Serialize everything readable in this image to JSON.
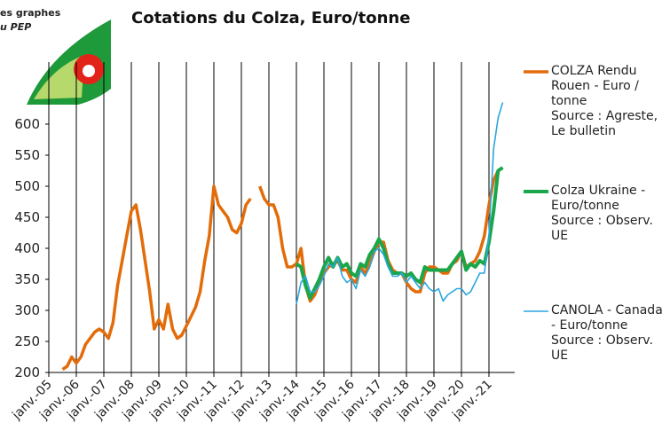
{
  "logo_text": [
    "es graphes",
    "u PEP"
  ],
  "chart_data": {
    "type": "line",
    "title": "Cotations du Colza, Euro/tonne",
    "legend": "right",
    "grid": true,
    "ylim": [
      200,
      700
    ],
    "yticks": [
      200,
      250,
      300,
      350,
      400,
      450,
      500,
      550,
      600
    ],
    "xticks": [
      {
        "value": "2005-01",
        "label": "janv.-05"
      },
      {
        "value": "2006-01",
        "label": "janv.-06"
      },
      {
        "value": "2007-01",
        "label": "janv.-07"
      },
      {
        "value": "2008-01",
        "label": "janv.-08"
      },
      {
        "value": "2009-01",
        "label": "janv.-09"
      },
      {
        "value": "2010-01",
        "label": "janv.-10"
      },
      {
        "value": "2011-01",
        "label": "janv.-11"
      },
      {
        "value": "2012-01",
        "label": "janv.-12"
      },
      {
        "value": "2013-01",
        "label": "janv.-13"
      },
      {
        "value": "2014-01",
        "label": "janv.-14"
      },
      {
        "value": "2015-01",
        "label": "janv.-15"
      },
      {
        "value": "2016-01",
        "label": "janv.-16"
      },
      {
        "value": "2017-01",
        "label": "janv.-17"
      },
      {
        "value": "2018-01",
        "label": "janv.-18"
      },
      {
        "value": "2019-01",
        "label": "janv.-19"
      },
      {
        "value": "2020-01",
        "label": "janv.-20"
      },
      {
        "value": "2021-01",
        "label": "janv.-21"
      }
    ],
    "x": [
      "2005-07",
      "2005-09",
      "2005-11",
      "2006-01",
      "2006-03",
      "2006-05",
      "2006-07",
      "2006-09",
      "2006-11",
      "2007-01",
      "2007-03",
      "2007-05",
      "2007-07",
      "2007-09",
      "2007-11",
      "2008-01",
      "2008-03",
      "2008-05",
      "2008-07",
      "2008-09",
      "2008-11",
      "2009-01",
      "2009-03",
      "2009-05",
      "2009-07",
      "2009-09",
      "2009-11",
      "2010-01",
      "2010-03",
      "2010-05",
      "2010-07",
      "2010-09",
      "2010-11",
      "2011-01",
      "2011-03",
      "2011-05",
      "2011-07",
      "2011-09",
      "2011-11",
      "2012-01",
      "2012-03",
      "2012-05",
      "2012-07",
      "2012-09",
      "2012-11",
      "2013-01",
      "2013-03",
      "2013-05",
      "2013-07",
      "2013-09",
      "2013-11",
      "2014-01",
      "2014-03",
      "2014-05",
      "2014-07",
      "2014-09",
      "2014-11",
      "2015-01",
      "2015-03",
      "2015-05",
      "2015-07",
      "2015-09",
      "2015-11",
      "2016-01",
      "2016-03",
      "2016-05",
      "2016-07",
      "2016-09",
      "2016-11",
      "2017-01",
      "2017-03",
      "2017-05",
      "2017-07",
      "2017-09",
      "2017-11",
      "2018-01",
      "2018-03",
      "2018-05",
      "2018-07",
      "2018-09",
      "2018-11",
      "2019-01",
      "2019-03",
      "2019-05",
      "2019-07",
      "2019-09",
      "2019-11",
      "2020-01",
      "2020-03",
      "2020-05",
      "2020-07",
      "2020-09",
      "2020-11",
      "2021-01",
      "2021-03",
      "2021-05",
      "2021-07"
    ],
    "series": [
      {
        "name": "COLZA Rendu Rouen - Euro / tonne\nSource : Agreste, Le bulletin",
        "color": "#e36c0a",
        "width": 3.5,
        "values": [
          205,
          210,
          225,
          215,
          225,
          245,
          255,
          265,
          270,
          265,
          255,
          280,
          340,
          380,
          420,
          460,
          470,
          430,
          380,
          330,
          270,
          285,
          270,
          310,
          270,
          255,
          260,
          275,
          290,
          305,
          330,
          380,
          420,
          500,
          470,
          460,
          450,
          430,
          425,
          440,
          470,
          480,
          null,
          500,
          480,
          470,
          470,
          450,
          400,
          370,
          370,
          375,
          400,
          340,
          315,
          325,
          345,
          360,
          370,
          375,
          380,
          365,
          365,
          350,
          345,
          370,
          360,
          375,
          395,
          410,
          410,
          380,
          365,
          360,
          360,
          345,
          335,
          330,
          330,
          360,
          370,
          370,
          365,
          360,
          360,
          375,
          380,
          395,
          370,
          375,
          380,
          395,
          420,
          470,
          510,
          525,
          null
        ]
      },
      {
        "name": "Colza Ukraine - Euro/tonne\nSource : Observ. UE",
        "color": "#1aa64a",
        "width": 4,
        "values": [
          null,
          null,
          null,
          null,
          null,
          null,
          null,
          null,
          null,
          null,
          null,
          null,
          null,
          null,
          null,
          null,
          null,
          null,
          null,
          null,
          null,
          null,
          null,
          null,
          null,
          null,
          null,
          null,
          null,
          null,
          null,
          null,
          null,
          null,
          null,
          null,
          null,
          null,
          null,
          null,
          null,
          null,
          null,
          null,
          null,
          null,
          null,
          null,
          null,
          null,
          null,
          375,
          370,
          340,
          320,
          335,
          350,
          370,
          385,
          370,
          385,
          370,
          375,
          360,
          355,
          375,
          370,
          390,
          400,
          415,
          400,
          375,
          360,
          360,
          360,
          355,
          360,
          350,
          345,
          370,
          365,
          365,
          365,
          365,
          365,
          375,
          385,
          395,
          365,
          375,
          370,
          380,
          375,
          410,
          460,
          525,
          530
        ]
      },
      {
        "name": "CANOLA - Canada - Euro/tonne\nSource : Observ. UE",
        "color": "#2ba6de",
        "width": 1.6,
        "values": [
          null,
          null,
          null,
          null,
          null,
          null,
          null,
          null,
          null,
          null,
          null,
          null,
          null,
          null,
          null,
          null,
          null,
          null,
          null,
          null,
          null,
          null,
          null,
          null,
          null,
          null,
          null,
          null,
          null,
          null,
          null,
          null,
          null,
          null,
          null,
          null,
          null,
          null,
          null,
          null,
          null,
          null,
          null,
          null,
          null,
          null,
          null,
          null,
          null,
          null,
          null,
          310,
          345,
          355,
          330,
          330,
          340,
          355,
          375,
          370,
          385,
          355,
          345,
          350,
          335,
          365,
          355,
          370,
          395,
          400,
          390,
          370,
          355,
          355,
          360,
          345,
          355,
          345,
          335,
          345,
          335,
          330,
          335,
          315,
          325,
          330,
          335,
          335,
          325,
          330,
          345,
          360,
          360,
          420,
          560,
          610,
          635
        ]
      }
    ]
  }
}
